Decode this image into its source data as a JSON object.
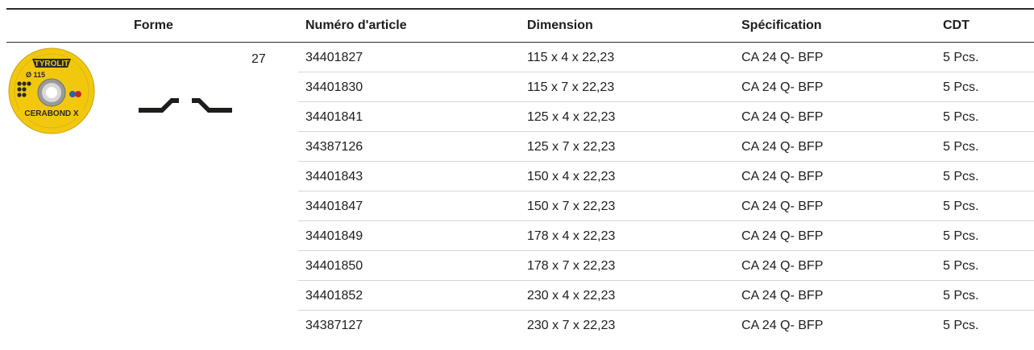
{
  "headers": {
    "forme": "Forme",
    "numero": "Numéro d'article",
    "dimension": "Dimension",
    "specification": "Spécification",
    "cdt": "CDT"
  },
  "product": {
    "shape_number": "27",
    "disc_brand": "TYROLIT",
    "disc_diameter": "Ø 115",
    "disc_name": "CERABOND X",
    "disc_colors": {
      "yellow": "#f2c80f",
      "dark": "#2a2a2a",
      "grey": "#9a9a9a"
    }
  },
  "rows": [
    {
      "numero": "34401827",
      "dimension": "115 x 4 x 22,23",
      "specification": "CA 24 Q- BFP",
      "cdt": "5 Pcs."
    },
    {
      "numero": "34401830",
      "dimension": "115 x 7 x 22,23",
      "specification": "CA 24 Q- BFP",
      "cdt": "5 Pcs."
    },
    {
      "numero": "34401841",
      "dimension": "125 x 4 x 22,23",
      "specification": "CA 24 Q- BFP",
      "cdt": "5 Pcs."
    },
    {
      "numero": "34387126",
      "dimension": "125 x 7 x 22,23",
      "specification": "CA 24 Q- BFP",
      "cdt": "5 Pcs."
    },
    {
      "numero": "34401843",
      "dimension": "150 x 4 x 22,23",
      "specification": "CA 24 Q- BFP",
      "cdt": "5 Pcs."
    },
    {
      "numero": "34401847",
      "dimension": "150 x 7 x 22,23",
      "specification": "CA 24 Q- BFP",
      "cdt": "5 Pcs."
    },
    {
      "numero": "34401849",
      "dimension": "178 x 4 x 22,23",
      "specification": "CA 24 Q- BFP",
      "cdt": "5 Pcs."
    },
    {
      "numero": "34401850",
      "dimension": "178 x 7 x 22,23",
      "specification": "CA 24 Q- BFP",
      "cdt": "5 Pcs."
    },
    {
      "numero": "34401852",
      "dimension": "230 x 4 x 22,23",
      "specification": "CA 24 Q- BFP",
      "cdt": "5 Pcs."
    },
    {
      "numero": "34387127",
      "dimension": "230 x 7 x 22,23",
      "specification": "CA 24 Q- BFP",
      "cdt": "5 Pcs."
    }
  ]
}
